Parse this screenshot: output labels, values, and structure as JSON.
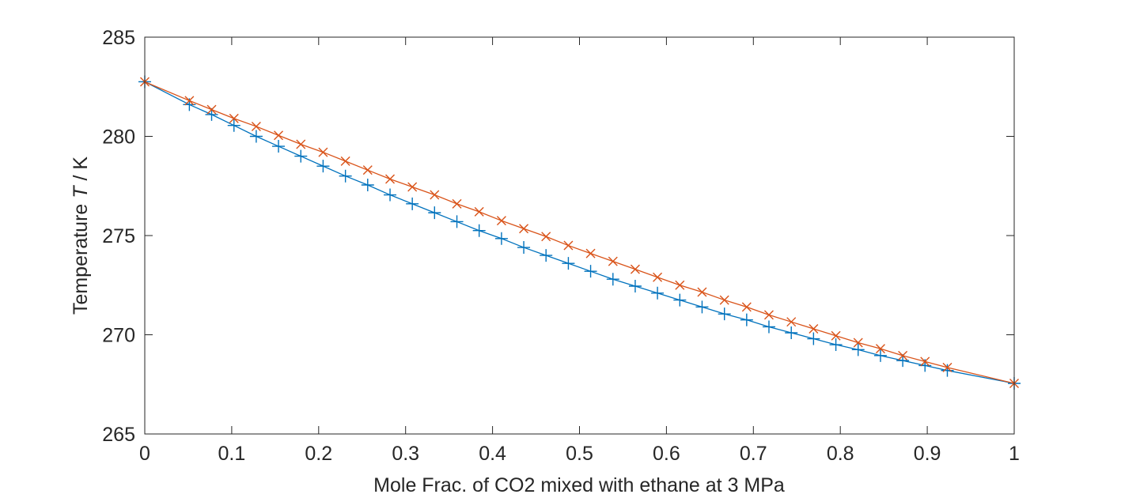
{
  "chart_data": {
    "type": "line",
    "xlabel": "Mole Frac. of CO2 mixed with ethane at 3 MPa",
    "ylabel": {
      "prefix": "Temperature ",
      "italic": "T",
      "suffix": " / K"
    },
    "xlim": [
      0,
      1
    ],
    "ylim": [
      265,
      285
    ],
    "xticks": [
      "0",
      "0.1",
      "0.2",
      "0.3",
      "0.4",
      "0.5",
      "0.6",
      "0.7",
      "0.8",
      "0.9",
      "1"
    ],
    "yticks": [
      "265",
      "270",
      "275",
      "280",
      "285"
    ],
    "grid": false,
    "box": true,
    "series": [
      {
        "marker": "plus",
        "color": "#0072BD",
        "x": [
          0,
          0.0513,
          0.0769,
          0.1026,
          0.1282,
          0.1538,
          0.1795,
          0.2051,
          0.2308,
          0.2564,
          0.2821,
          0.3077,
          0.3333,
          0.359,
          0.3846,
          0.4103,
          0.4359,
          0.4615,
          0.4872,
          0.5128,
          0.5385,
          0.5641,
          0.5897,
          0.6154,
          0.641,
          0.6667,
          0.6923,
          0.7179,
          0.7436,
          0.7692,
          0.7949,
          0.8205,
          0.8462,
          0.8718,
          0.8974,
          0.9231,
          1
        ],
        "y": [
          282.75,
          281.6,
          281.1,
          280.55,
          280.0,
          279.5,
          279.0,
          278.5,
          278.0,
          277.55,
          277.05,
          276.6,
          276.15,
          275.7,
          275.25,
          274.85,
          274.4,
          274.0,
          273.6,
          273.2,
          272.8,
          272.45,
          272.1,
          271.75,
          271.4,
          271.05,
          270.75,
          270.4,
          270.1,
          269.8,
          269.5,
          269.25,
          268.95,
          268.7,
          268.45,
          268.2,
          267.55
        ]
      },
      {
        "marker": "x",
        "color": "#D95319",
        "x": [
          0,
          0.0513,
          0.0769,
          0.1026,
          0.1282,
          0.1538,
          0.1795,
          0.2051,
          0.2308,
          0.2564,
          0.2821,
          0.3077,
          0.3333,
          0.359,
          0.3846,
          0.4103,
          0.4359,
          0.4615,
          0.4872,
          0.5128,
          0.5385,
          0.5641,
          0.5897,
          0.6154,
          0.641,
          0.6667,
          0.6923,
          0.7179,
          0.7436,
          0.7692,
          0.7949,
          0.8205,
          0.8462,
          0.8718,
          0.8974,
          0.9231,
          1
        ],
        "y": [
          282.75,
          281.8,
          281.35,
          280.9,
          280.5,
          280.05,
          279.6,
          279.2,
          278.75,
          278.3,
          277.85,
          277.45,
          277.05,
          276.6,
          276.2,
          275.75,
          275.35,
          274.95,
          274.5,
          274.1,
          273.7,
          273.3,
          272.9,
          272.5,
          272.15,
          271.75,
          271.4,
          271.0,
          270.65,
          270.3,
          269.95,
          269.6,
          269.3,
          268.95,
          268.65,
          268.35,
          267.55
        ]
      }
    ]
  }
}
